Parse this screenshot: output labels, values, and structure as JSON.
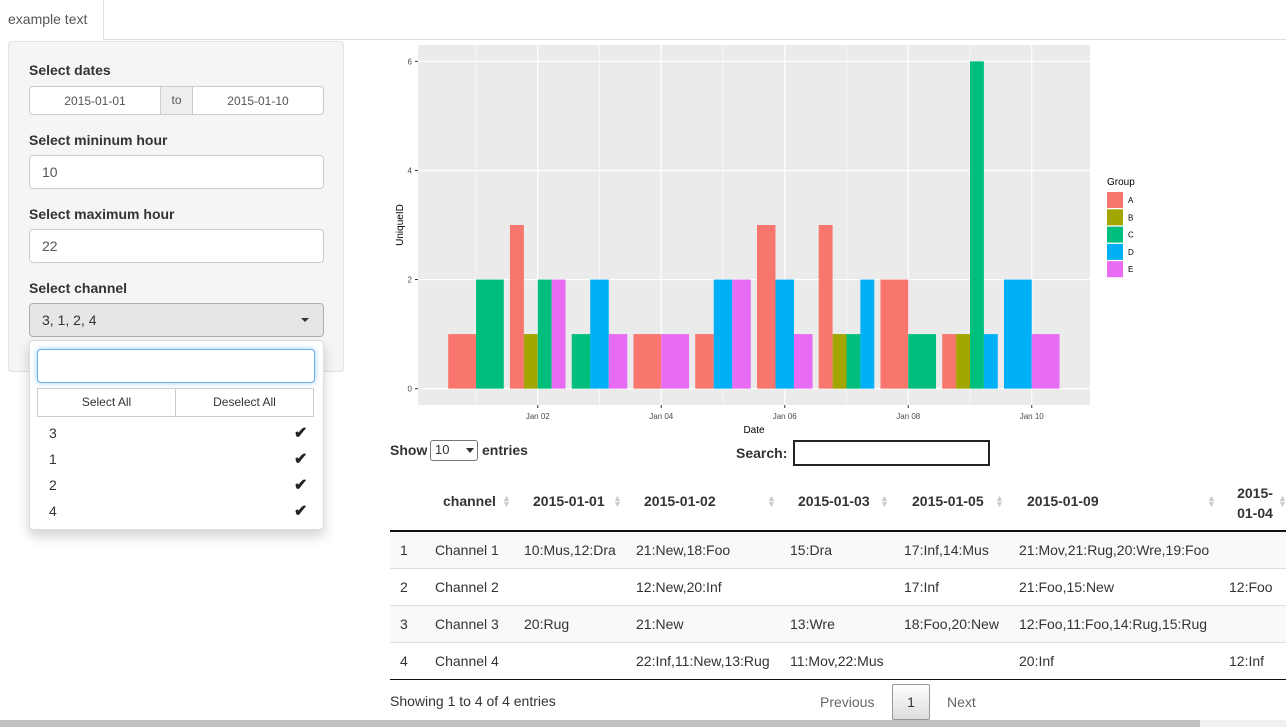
{
  "tab": "example text",
  "sidebar": {
    "date_label": "Select dates",
    "date_start": "2015-01-01",
    "date_sep": "to",
    "date_end": "2015-01-10",
    "min_hour_label": "Select mininum hour",
    "min_hour": 10,
    "max_hour_label": "Select maximum hour",
    "max_hour": 22,
    "channel_label": "Select channel",
    "channel_selected": "3, 1, 2, 4",
    "select_all": "Select All",
    "deselect_all": "Deselect All",
    "channel_options": [
      "3",
      "1",
      "2",
      "4"
    ]
  },
  "plot": {
    "type": "bar",
    "x_label": "Date",
    "y_label": "UniqueID",
    "categories": [
      null,
      "Jan 02",
      null,
      "Jan 04",
      null,
      "Jan 06",
      null,
      "Jan 08",
      null,
      "Jan 10"
    ],
    "legend_title": "Group",
    "series": [
      {
        "name": "A",
        "color": "#F8766D",
        "values": [
          1,
          3,
          null,
          1,
          1,
          3,
          3,
          2,
          1,
          null
        ]
      },
      {
        "name": "B",
        "color": "#A3A500",
        "values": [
          null,
          1,
          null,
          null,
          null,
          null,
          1,
          null,
          1,
          null
        ]
      },
      {
        "name": "C",
        "color": "#00BF7D",
        "values": [
          2,
          2,
          1,
          null,
          null,
          null,
          1,
          1,
          6,
          null
        ]
      },
      {
        "name": "D",
        "color": "#00B0F6",
        "values": [
          null,
          null,
          2,
          null,
          2,
          2,
          2,
          null,
          1,
          2
        ]
      },
      {
        "name": "E",
        "color": "#E76BF3",
        "values": [
          null,
          2,
          1,
          1,
          2,
          1,
          null,
          null,
          null,
          1
        ]
      }
    ],
    "ylim": [
      -0.3,
      6.3
    ],
    "yticks": [
      0,
      2,
      4,
      6
    ],
    "grid": true
  },
  "table": {
    "show_label": "Show",
    "page_length": "10",
    "entries_label": "entries",
    "search_label": "Search:",
    "columns": [
      "channel",
      "2015-01-01",
      "2015-01-02",
      "2015-01-03",
      "2015-01-05",
      "2015-01-09",
      "2015-01-04"
    ],
    "rows": [
      [
        1,
        "Channel 1",
        "10:Mus,12:Dra",
        "21:New,18:Foo",
        "15:Dra",
        "17:Inf,14:Mus",
        "21:Mov,21:Rug,20:Wre,19:Foo",
        null
      ],
      [
        2,
        "Channel 2",
        null,
        "12:New,20:Inf",
        null,
        "17:Inf",
        "21:Foo,15:New",
        "12:Foo"
      ],
      [
        3,
        "Channel 3",
        "20:Rug",
        "21:New",
        "13:Wre",
        "18:Foo,20:New",
        "12:Foo,11:Foo,14:Rug,15:Rug",
        null
      ],
      [
        4,
        "Channel 4",
        null,
        "22:Inf,11:New,13:Rug",
        "11:Mov,22:Mus",
        null,
        "20:Inf",
        "12:Inf"
      ]
    ],
    "info": "Showing 1 to 4 of 4 entries",
    "previous": "Previous",
    "page": "1",
    "next": "Next"
  }
}
